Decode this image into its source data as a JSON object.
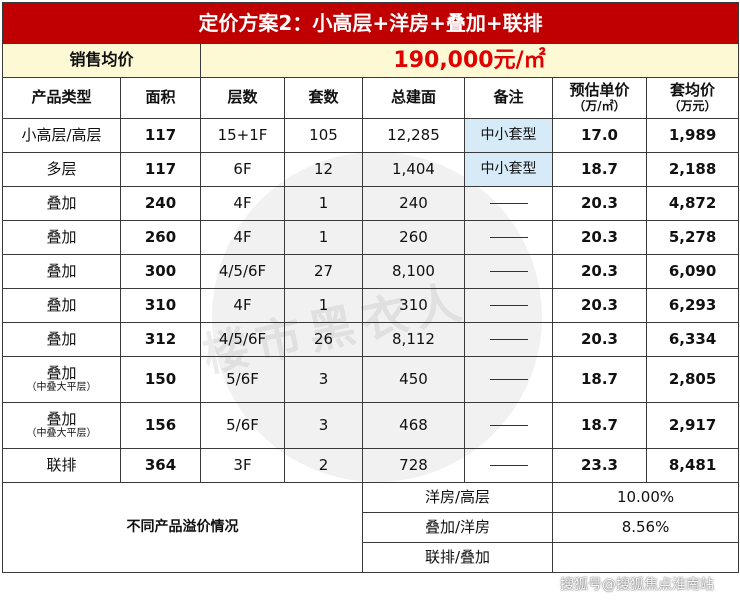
{
  "title": "定价方案2：小高层+洋房+叠加+联排",
  "avg_price": {
    "label": "销售均价",
    "value": "190,000元/㎡"
  },
  "headers": [
    {
      "main": "产品类型",
      "sub": ""
    },
    {
      "main": "面积",
      "sub": ""
    },
    {
      "main": "层数",
      "sub": ""
    },
    {
      "main": "套数",
      "sub": ""
    },
    {
      "main": "总建面",
      "sub": ""
    },
    {
      "main": "备注",
      "sub": ""
    },
    {
      "main": "预估单价",
      "sub": "（万/㎡）"
    },
    {
      "main": "套均价",
      "sub": "（万元）"
    }
  ],
  "rows": [
    {
      "type": "小高层/高层",
      "type_sub": "",
      "area": "117",
      "floors": "15+1F",
      "units": "105",
      "total": "12,285",
      "note": "中小套型",
      "unit_price": "17.0",
      "avg": "1,989"
    },
    {
      "type": "多层",
      "type_sub": "",
      "area": "117",
      "floors": "6F",
      "units": "12",
      "total": "1,404",
      "note": "中小套型",
      "unit_price": "18.7",
      "avg": "2,188"
    },
    {
      "type": "叠加",
      "type_sub": "",
      "area": "240",
      "floors": "4F",
      "units": "1",
      "total": "240",
      "note": "",
      "unit_price": "20.3",
      "avg": "4,872"
    },
    {
      "type": "叠加",
      "type_sub": "",
      "area": "260",
      "floors": "4F",
      "units": "1",
      "total": "260",
      "note": "",
      "unit_price": "20.3",
      "avg": "5,278"
    },
    {
      "type": "叠加",
      "type_sub": "",
      "area": "300",
      "floors": "4/5/6F",
      "units": "27",
      "total": "8,100",
      "note": "",
      "unit_price": "20.3",
      "avg": "6,090"
    },
    {
      "type": "叠加",
      "type_sub": "",
      "area": "310",
      "floors": "4F",
      "units": "1",
      "total": "310",
      "note": "",
      "unit_price": "20.3",
      "avg": "6,293"
    },
    {
      "type": "叠加",
      "type_sub": "",
      "area": "312",
      "floors": "4/5/6F",
      "units": "26",
      "total": "8,112",
      "note": "",
      "unit_price": "20.3",
      "avg": "6,334"
    },
    {
      "type": "叠加",
      "type_sub": "（中叠大平层）",
      "area": "150",
      "floors": "5/6F",
      "units": "3",
      "total": "450",
      "note": "",
      "unit_price": "18.7",
      "avg": "2,805"
    },
    {
      "type": "叠加",
      "type_sub": "（中叠大平层）",
      "area": "156",
      "floors": "5/6F",
      "units": "3",
      "total": "468",
      "note": "",
      "unit_price": "18.7",
      "avg": "2,917"
    },
    {
      "type": "联排",
      "type_sub": "",
      "area": "364",
      "floors": "3F",
      "units": "2",
      "total": "728",
      "note": "",
      "unit_price": "23.3",
      "avg": "8,481"
    }
  ],
  "premium": {
    "label": "不同产品溢价情况",
    "items": [
      {
        "name": "洋房/高层",
        "value": "10.00%"
      },
      {
        "name": "叠加/洋房",
        "value": "8.56%"
      },
      {
        "name": "联排/叠加",
        "value": ""
      }
    ]
  },
  "watermark": "楼市黑衣人",
  "footer_watermark": "搜狐号@搜狐焦点淮南站",
  "colors": {
    "title_bg": "#c00000",
    "avg_bg": "#fdf9d5",
    "price_red": "#e00000",
    "note_blue": "#d6eaf8"
  }
}
